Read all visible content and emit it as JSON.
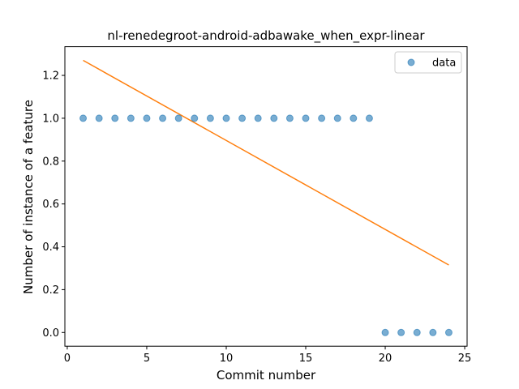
{
  "chart_data": {
    "type": "scatter",
    "title": "nl-renedegroot-android-adbawake_when_expr-linear",
    "xlabel": "Commit number",
    "ylabel": "Number of instance of a feature",
    "xlim": [
      -0.15,
      25.15
    ],
    "ylim": [
      -0.064,
      1.334
    ],
    "xticks": [
      0,
      5,
      10,
      15,
      20,
      25
    ],
    "yticks": [
      0.0,
      0.2,
      0.4,
      0.6,
      0.8,
      1.0,
      1.2
    ],
    "ytick_labels": [
      "0.0",
      "0.2",
      "0.4",
      "0.6",
      "0.8",
      "1.0",
      "1.2"
    ],
    "grid": false,
    "legend_position": "top-right",
    "series": [
      {
        "name": "data",
        "kind": "scatter",
        "color": "#1f77b4",
        "x": [
          1,
          2,
          3,
          4,
          5,
          6,
          7,
          8,
          9,
          10,
          11,
          12,
          13,
          14,
          15,
          16,
          17,
          18,
          19,
          20,
          21,
          22,
          23,
          24
        ],
        "y": [
          1,
          1,
          1,
          1,
          1,
          1,
          1,
          1,
          1,
          1,
          1,
          1,
          1,
          1,
          1,
          1,
          1,
          1,
          1,
          0,
          0,
          0,
          0,
          0
        ]
      },
      {
        "kind": "line",
        "color": "#ff7f0e",
        "x": [
          1,
          24
        ],
        "y": [
          1.27,
          0.315
        ]
      }
    ]
  }
}
